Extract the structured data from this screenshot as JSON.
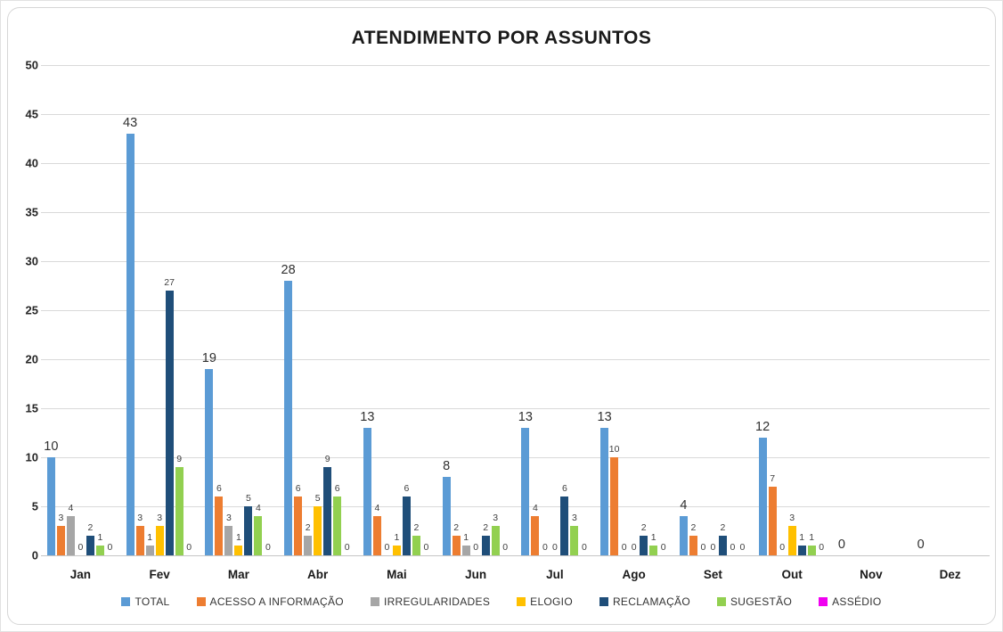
{
  "chart_data": {
    "type": "bar",
    "title": "ATENDIMENTO POR ASSUNTOS",
    "categories": [
      "Jan",
      "Fev",
      "Mar",
      "Abr",
      "Mai",
      "Jun",
      "Jul",
      "Ago",
      "Set",
      "Out",
      "Nov",
      "Dez"
    ],
    "series": [
      {
        "name": "TOTAL",
        "color": "#5B9BD5",
        "emphasis": true,
        "values": [
          10,
          43,
          19,
          28,
          13,
          8,
          13,
          13,
          4,
          12,
          0,
          0
        ]
      },
      {
        "name": "ACESSO A INFORMAÇÃO",
        "color": "#ED7D31",
        "emphasis": false,
        "values": [
          3,
          3,
          6,
          6,
          4,
          2,
          4,
          10,
          2,
          7,
          null,
          null
        ]
      },
      {
        "name": "IRREGULARIDADES",
        "color": "#A6A6A6",
        "emphasis": false,
        "values": [
          4,
          1,
          3,
          2,
          0,
          1,
          0,
          0,
          0,
          0,
          null,
          null
        ]
      },
      {
        "name": "ELOGIO",
        "color": "#FFC000",
        "emphasis": false,
        "values": [
          0,
          3,
          1,
          5,
          1,
          0,
          0,
          0,
          0,
          3,
          null,
          null
        ]
      },
      {
        "name": "RECLAMAÇÃO",
        "color": "#1F4E79",
        "emphasis": false,
        "values": [
          2,
          27,
          5,
          9,
          6,
          2,
          6,
          2,
          2,
          1,
          null,
          null
        ]
      },
      {
        "name": "SUGESTÃO",
        "color": "#92D050",
        "emphasis": false,
        "values": [
          1,
          9,
          4,
          6,
          2,
          3,
          3,
          1,
          0,
          1,
          null,
          null
        ]
      },
      {
        "name": "ASSÉDIO",
        "color": "#F000F0",
        "emphasis": false,
        "values": [
          0,
          0,
          0,
          0,
          0,
          0,
          0,
          0,
          0,
          0,
          null,
          null
        ]
      }
    ],
    "ylim": [
      0,
      50
    ],
    "ytick_step": 5,
    "grid": true,
    "legend_position": "bottom",
    "data_labels": true
  }
}
